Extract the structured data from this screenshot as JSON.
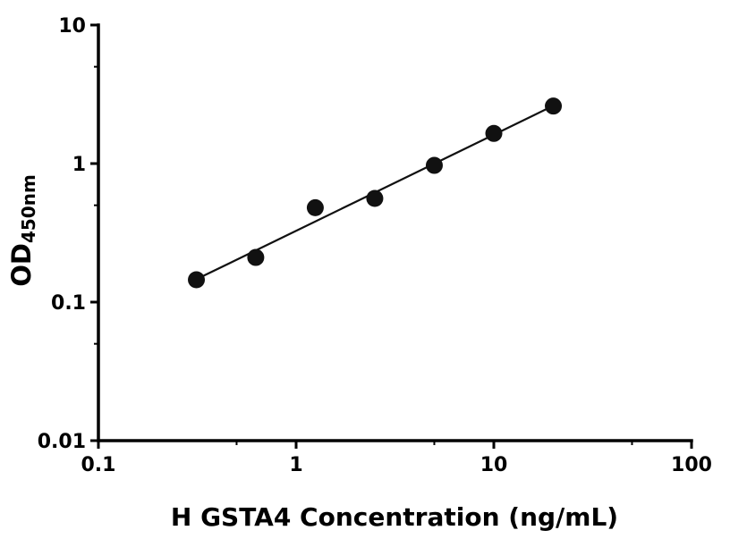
{
  "chart_data": {
    "type": "scatter",
    "title": "",
    "xlabel": "H GSTA4 Concentration (ng/mL)",
    "ylabel_main": "OD",
    "ylabel_sub": "450nm",
    "x_scale": "log",
    "y_scale": "log",
    "xlim": [
      0.1,
      100
    ],
    "ylim": [
      0.01,
      10
    ],
    "x_ticks": [
      0.1,
      1,
      10,
      100
    ],
    "x_tick_labels": [
      "0.1",
      "1",
      "10",
      "100"
    ],
    "y_ticks": [
      0.01,
      0.1,
      1,
      10
    ],
    "y_tick_labels": [
      "0.01",
      "0.1",
      "1",
      "10"
    ],
    "x_minor_ticks": [
      0.5,
      5,
      50
    ],
    "y_minor_ticks": [
      0.05,
      0.5,
      5
    ],
    "grid": false,
    "legend": null,
    "marker_color": "#111111",
    "line_color": "#111111",
    "points": [
      [
        0.313,
        0.145
      ],
      [
        0.625,
        0.21
      ],
      [
        1.25,
        0.48
      ],
      [
        2.5,
        0.56
      ],
      [
        5,
        0.97
      ],
      [
        10,
        1.65
      ],
      [
        20,
        2.6
      ]
    ],
    "fit_curve": [
      [
        0.3,
        0.142
      ],
      [
        0.5,
        0.202
      ],
      [
        1,
        0.327
      ],
      [
        2,
        0.529
      ],
      [
        4,
        0.856
      ],
      [
        8,
        1.384
      ],
      [
        16,
        2.24
      ],
      [
        20.6,
        2.67
      ]
    ]
  }
}
